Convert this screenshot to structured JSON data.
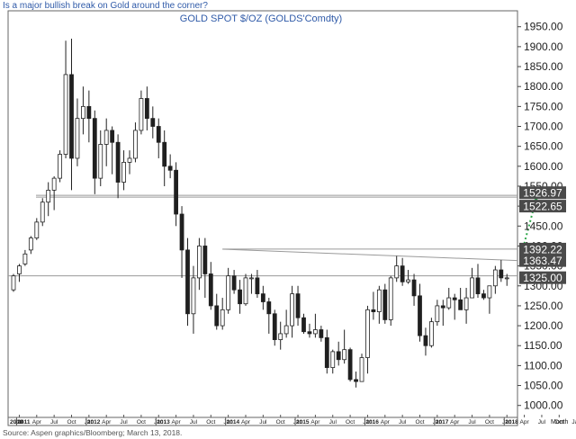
{
  "headline": "Is a major bullish break on Gold around the corner?",
  "source": "Source: Aspen graphics/Bloomberg; March 13, 2018.",
  "chart_data": {
    "type": "candlestick",
    "period": "monthly",
    "title": "GOLD  SPOT  $/OZ  (GOLDS'Comdty)",
    "y_axis": {
      "side": "right",
      "ylim": [
        970,
        1990
      ],
      "ticks": [
        1000,
        1050,
        1100,
        1150,
        1200,
        1250,
        1300,
        1350,
        1400,
        1450,
        1500,
        1550,
        1600,
        1650,
        1700,
        1750,
        1800,
        1850,
        1900,
        1950
      ],
      "tick_labels": [
        "1000.00",
        "1050.00",
        "1100.00",
        "1150.00",
        "1200.00",
        "1250.00",
        "1300.00",
        "1350.00",
        "1400.00",
        "1450.00",
        "1500.00",
        "1550.00",
        "1600.00",
        "1650.00",
        "1700.00",
        "1750.00",
        "1800.00",
        "1850.00",
        "1900.00",
        "1950.00"
      ]
    },
    "x_axis": {
      "label": "Month",
      "month_ticks": [
        {
          "t": 1,
          "label": "Jan"
        },
        {
          "t": 4,
          "label": "Apr"
        },
        {
          "t": 7,
          "label": "Jul"
        },
        {
          "t": 10,
          "label": "Oct"
        },
        {
          "t": 13,
          "label": "Jan"
        },
        {
          "t": 16,
          "label": "Apr"
        },
        {
          "t": 19,
          "label": "Jul"
        },
        {
          "t": 22,
          "label": "Oct"
        },
        {
          "t": 25,
          "label": "Jan"
        },
        {
          "t": 28,
          "label": "Apr"
        },
        {
          "t": 31,
          "label": "Jul"
        },
        {
          "t": 34,
          "label": "Oct"
        },
        {
          "t": 37,
          "label": "Jan"
        },
        {
          "t": 40,
          "label": "Apr"
        },
        {
          "t": 43,
          "label": "Jul"
        },
        {
          "t": 46,
          "label": "Oct"
        },
        {
          "t": 49,
          "label": "Jan"
        },
        {
          "t": 52,
          "label": "Apr"
        },
        {
          "t": 55,
          "label": "Jul"
        },
        {
          "t": 58,
          "label": "Oct"
        },
        {
          "t": 61,
          "label": "Jan"
        },
        {
          "t": 64,
          "label": "Apr"
        },
        {
          "t": 67,
          "label": "Jul"
        },
        {
          "t": 70,
          "label": "Oct"
        },
        {
          "t": 73,
          "label": "Jan"
        },
        {
          "t": 76,
          "label": "Apr"
        },
        {
          "t": 79,
          "label": "Jul"
        },
        {
          "t": 82,
          "label": "Oct"
        },
        {
          "t": 85,
          "label": "Jan"
        },
        {
          "t": 88,
          "label": "Apr"
        },
        {
          "t": 91,
          "label": "Jul"
        },
        {
          "t": 94,
          "label": "Oct"
        },
        {
          "t": 97,
          "label": "Jan"
        }
      ],
      "year_ticks": [
        {
          "t": -1,
          "label": "2010"
        },
        {
          "t": 1,
          "label": "2011"
        },
        {
          "t": 13,
          "label": "2012"
        },
        {
          "t": 25,
          "label": "2013"
        },
        {
          "t": 37,
          "label": "2014"
        },
        {
          "t": 49,
          "label": "2015"
        },
        {
          "t": 61,
          "label": "2016"
        },
        {
          "t": 73,
          "label": "2017"
        },
        {
          "t": 85,
          "label": "2018"
        }
      ]
    },
    "candles": [
      [
        1290,
        1325,
        1285,
        1330
      ],
      [
        1330,
        1350,
        1310,
        1355
      ],
      [
        1355,
        1380,
        1350,
        1390
      ],
      [
        1390,
        1420,
        1380,
        1425
      ],
      [
        1420,
        1460,
        1415,
        1470
      ],
      [
        1460,
        1510,
        1450,
        1520
      ],
      [
        1510,
        1540,
        1475,
        1560
      ],
      [
        1540,
        1570,
        1490,
        1575
      ],
      [
        1570,
        1630,
        1560,
        1640
      ],
      [
        1630,
        1830,
        1620,
        1915
      ],
      [
        1830,
        1620,
        1540,
        1920
      ],
      [
        1620,
        1720,
        1600,
        1770
      ],
      [
        1720,
        1750,
        1680,
        1800
      ],
      [
        1750,
        1720,
        1660,
        1790
      ],
      [
        1720,
        1570,
        1530,
        1740
      ],
      [
        1570,
        1655,
        1550,
        1690
      ],
      [
        1655,
        1690,
        1600,
        1720
      ],
      [
        1690,
        1660,
        1580,
        1700
      ],
      [
        1660,
        1560,
        1520,
        1680
      ],
      [
        1560,
        1610,
        1540,
        1640
      ],
      [
        1610,
        1620,
        1580,
        1640
      ],
      [
        1620,
        1690,
        1610,
        1710
      ],
      [
        1690,
        1770,
        1680,
        1790
      ],
      [
        1770,
        1720,
        1690,
        1800
      ],
      [
        1720,
        1700,
        1670,
        1750
      ],
      [
        1700,
        1660,
        1620,
        1720
      ],
      [
        1660,
        1600,
        1550,
        1690
      ],
      [
        1600,
        1590,
        1570,
        1630
      ],
      [
        1590,
        1480,
        1450,
        1610
      ],
      [
        1480,
        1390,
        1320,
        1500
      ],
      [
        1390,
        1230,
        1200,
        1420
      ],
      [
        1230,
        1320,
        1180,
        1350
      ],
      [
        1320,
        1400,
        1290,
        1420
      ],
      [
        1400,
        1330,
        1270,
        1420
      ],
      [
        1330,
        1250,
        1240,
        1360
      ],
      [
        1250,
        1200,
        1190,
        1280
      ],
      [
        1200,
        1240,
        1190,
        1270
      ],
      [
        1240,
        1325,
        1230,
        1345
      ],
      [
        1325,
        1290,
        1280,
        1340
      ],
      [
        1290,
        1255,
        1230,
        1315
      ],
      [
        1255,
        1320,
        1250,
        1330
      ],
      [
        1320,
        1320,
        1280,
        1330
      ],
      [
        1320,
        1280,
        1270,
        1340
      ],
      [
        1280,
        1260,
        1240,
        1300
      ],
      [
        1260,
        1230,
        1180,
        1270
      ],
      [
        1230,
        1165,
        1150,
        1240
      ],
      [
        1165,
        1180,
        1140,
        1210
      ],
      [
        1180,
        1200,
        1170,
        1240
      ],
      [
        1200,
        1280,
        1170,
        1300
      ],
      [
        1280,
        1220,
        1200,
        1300
      ],
      [
        1220,
        1185,
        1180,
        1230
      ],
      [
        1185,
        1180,
        1170,
        1205
      ],
      [
        1180,
        1190,
        1170,
        1230
      ],
      [
        1190,
        1170,
        1160,
        1200
      ],
      [
        1170,
        1095,
        1080,
        1190
      ],
      [
        1095,
        1135,
        1080,
        1140
      ],
      [
        1135,
        1115,
        1100,
        1160
      ],
      [
        1115,
        1140,
        1105,
        1190
      ],
      [
        1140,
        1065,
        1060,
        1145
      ],
      [
        1065,
        1060,
        1045,
        1085
      ],
      [
        1060,
        1120,
        1060,
        1130
      ],
      [
        1120,
        1240,
        1080,
        1250
      ],
      [
        1240,
        1235,
        1215,
        1285
      ],
      [
        1235,
        1290,
        1205,
        1300
      ],
      [
        1290,
        1215,
        1205,
        1305
      ],
      [
        1215,
        1320,
        1200,
        1325
      ],
      [
        1320,
        1350,
        1310,
        1375
      ],
      [
        1350,
        1310,
        1300,
        1370
      ],
      [
        1310,
        1315,
        1305,
        1340
      ],
      [
        1315,
        1275,
        1250,
        1330
      ],
      [
        1275,
        1175,
        1160,
        1305
      ],
      [
        1175,
        1150,
        1125,
        1195
      ],
      [
        1150,
        1210,
        1145,
        1220
      ],
      [
        1210,
        1250,
        1200,
        1265
      ],
      [
        1250,
        1245,
        1200,
        1265
      ],
      [
        1245,
        1270,
        1240,
        1295
      ],
      [
        1270,
        1265,
        1215,
        1280
      ],
      [
        1265,
        1240,
        1240,
        1295
      ],
      [
        1240,
        1270,
        1205,
        1295
      ],
      [
        1270,
        1320,
        1270,
        1345
      ],
      [
        1320,
        1280,
        1270,
        1355
      ],
      [
        1280,
        1270,
        1265,
        1290
      ],
      [
        1270,
        1300,
        1230,
        1300
      ],
      [
        1300,
        1340,
        1280,
        1350
      ],
      [
        1340,
        1320,
        1310,
        1365
      ],
      [
        1320,
        1320,
        1300,
        1330
      ]
    ],
    "horizontal_lines": [
      {
        "value": 1526.97,
        "label": "1526.97"
      },
      {
        "value": 1522.65,
        "label": "1522.65"
      },
      {
        "value": 1392.22,
        "label": "1392.22"
      },
      {
        "value": 1325.0,
        "label": "1325.00"
      }
    ],
    "trendline": {
      "label": "1363.47",
      "start": [
        36,
        1392
      ],
      "end": [
        88,
        1363.47
      ]
    },
    "projection_arrow": {
      "from": [
        87,
        1395
      ],
      "to": [
        89,
        1525
      ],
      "color": "#2ea84a",
      "style": "dotted"
    },
    "colors": {
      "down": "#1f1f1f",
      "up": "#ffffff",
      "line": "#9a9a9a",
      "label_bg": "#4a4a4a",
      "title": "#2f5aa8"
    }
  }
}
